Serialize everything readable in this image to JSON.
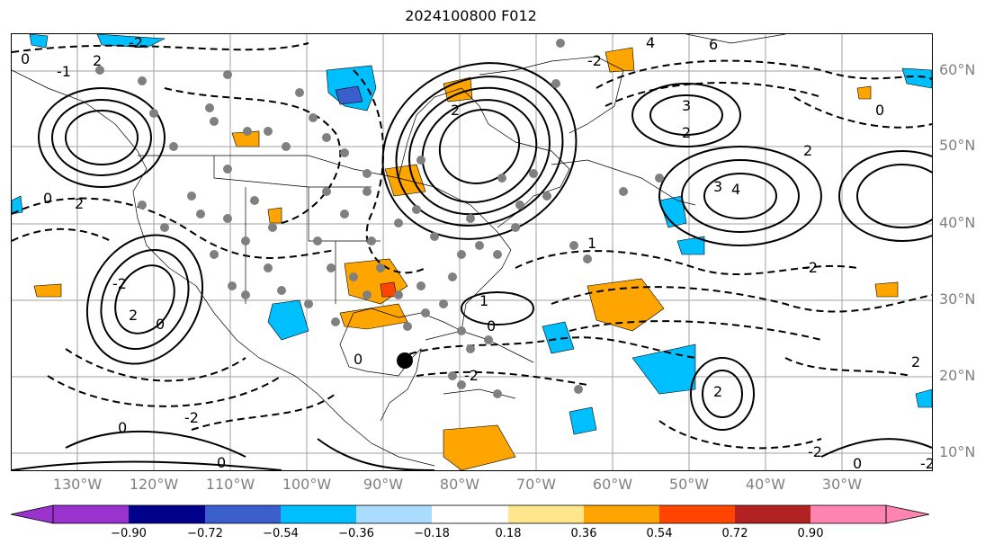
{
  "title": "2024100800 F012",
  "lat_labels": [
    "60°N",
    "50°N",
    "40°N",
    "30°N",
    "20°N",
    "10°N"
  ],
  "lon_labels": [
    "130°W",
    "120°W",
    "110°W",
    "100°W",
    "90°W",
    "80°W",
    "70°W",
    "60°W",
    "50°W",
    "40°W",
    "30°W"
  ],
  "contour_labels": [
    "0",
    "2",
    "4",
    "6",
    "-2",
    "3",
    "1",
    "-1"
  ],
  "colorbar": {
    "ticks": [
      "−0.90",
      "−0.72",
      "−0.54",
      "−0.36",
      "−0.18",
      "0.18",
      "0.36",
      "0.54",
      "0.72",
      "0.90"
    ],
    "colors": [
      "#9a32cd",
      "#00008b",
      "#3a5fcd",
      "#00bfff",
      "#aadcff",
      "#ffffff",
      "#ffe68c",
      "#ffa500",
      "#ff4500",
      "#b22222",
      "#ff85b0"
    ]
  },
  "colors": {
    "positive_fill": "#ffa500",
    "negative_fill": "#00bfff",
    "station_marker": "#808080",
    "grid": "#a0a0a0"
  }
}
